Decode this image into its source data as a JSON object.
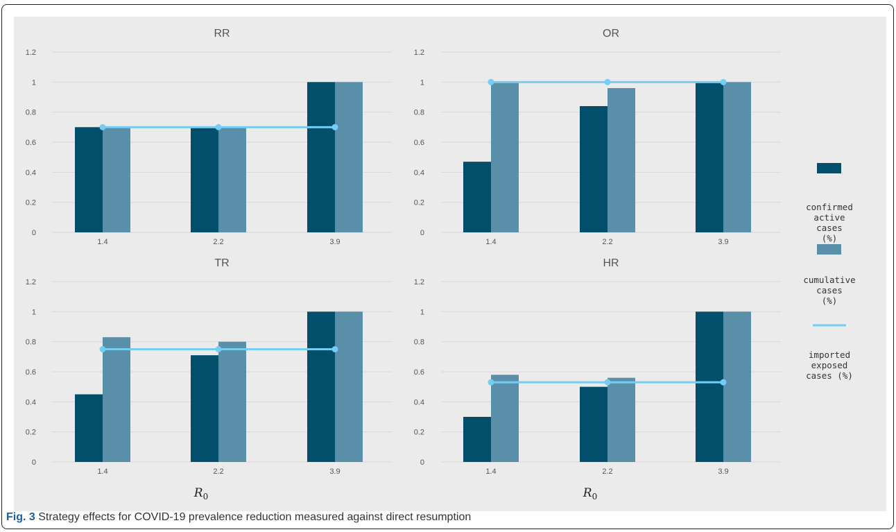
{
  "figure": {
    "caption_label": "Fig. 3",
    "caption_text": "Strategy effects for COVID-19 prevalence reduction measured against direct resumption"
  },
  "colors": {
    "confirmed": "#024f6b",
    "cumulative": "#5a8fa9",
    "imported": "#76cdf3",
    "background": "#ebebeb",
    "grid": "#d7d7d7"
  },
  "legend": {
    "items": [
      {
        "key": "confirmed",
        "label": "confirmed active cases (%)",
        "shape": "swatch"
      },
      {
        "key": "cumulative",
        "label": "cumulative cases (%)",
        "shape": "swatch"
      },
      {
        "key": "imported",
        "label": "imported exposed cases (%)",
        "shape": "line"
      }
    ]
  },
  "chart_data": [
    {
      "type": "bar",
      "title": "RR",
      "categories": [
        "1.4",
        "2.2",
        "3.9"
      ],
      "series": [
        {
          "name": "confirmed active cases (%)",
          "kind": "bar",
          "values": [
            0.7,
            0.7,
            1.0
          ]
        },
        {
          "name": "cumulative cases (%)",
          "kind": "bar",
          "values": [
            0.7,
            0.7,
            1.0
          ]
        },
        {
          "name": "imported exposed cases (%)",
          "kind": "line",
          "values": [
            0.7,
            0.7,
            0.7
          ]
        }
      ],
      "yticks": [
        "0",
        "0.2",
        "0.4",
        "0.6",
        "0.8",
        "1",
        "1.2"
      ],
      "ylim": [
        0,
        1.2
      ],
      "xlabel": "",
      "grid": true
    },
    {
      "type": "bar",
      "title": "OR",
      "categories": [
        "1.4",
        "2.2",
        "3.9"
      ],
      "series": [
        {
          "name": "confirmed active cases (%)",
          "kind": "bar",
          "values": [
            0.47,
            0.84,
            1.0
          ]
        },
        {
          "name": "cumulative cases (%)",
          "kind": "bar",
          "values": [
            1.0,
            0.96,
            1.0
          ]
        },
        {
          "name": "imported exposed cases (%)",
          "kind": "line",
          "values": [
            1.0,
            1.0,
            1.0
          ]
        }
      ],
      "yticks": [
        "0",
        "0.2",
        "0.4",
        "0.6",
        "0.8",
        "1",
        "1.2"
      ],
      "ylim": [
        0,
        1.2
      ],
      "xlabel": "",
      "grid": true
    },
    {
      "type": "bar",
      "title": "TR",
      "categories": [
        "1.4",
        "2.2",
        "3.9"
      ],
      "series": [
        {
          "name": "confirmed active cases (%)",
          "kind": "bar",
          "values": [
            0.45,
            0.71,
            1.0
          ]
        },
        {
          "name": "cumulative cases (%)",
          "kind": "bar",
          "values": [
            0.83,
            0.8,
            1.0
          ]
        },
        {
          "name": "imported exposed cases (%)",
          "kind": "line",
          "values": [
            0.75,
            0.75,
            0.75
          ]
        }
      ],
      "yticks": [
        "0",
        "0.2",
        "0.4",
        "0.6",
        "0.8",
        "1",
        "1.2"
      ],
      "ylim": [
        0,
        1.2
      ],
      "xlabel": "R0",
      "grid": true
    },
    {
      "type": "bar",
      "title": "HR",
      "categories": [
        "1.4",
        "2.2",
        "3.9"
      ],
      "series": [
        {
          "name": "confirmed active cases (%)",
          "kind": "bar",
          "values": [
            0.3,
            0.5,
            1.0
          ]
        },
        {
          "name": "cumulative cases (%)",
          "kind": "bar",
          "values": [
            0.58,
            0.56,
            1.0
          ]
        },
        {
          "name": "imported exposed cases (%)",
          "kind": "line",
          "values": [
            0.53,
            0.53,
            0.53
          ]
        }
      ],
      "yticks": [
        "0",
        "0.2",
        "0.4",
        "0.6",
        "0.8",
        "1",
        "1.2"
      ],
      "ylim": [
        0,
        1.2
      ],
      "xlabel": "R0",
      "grid": true
    }
  ]
}
